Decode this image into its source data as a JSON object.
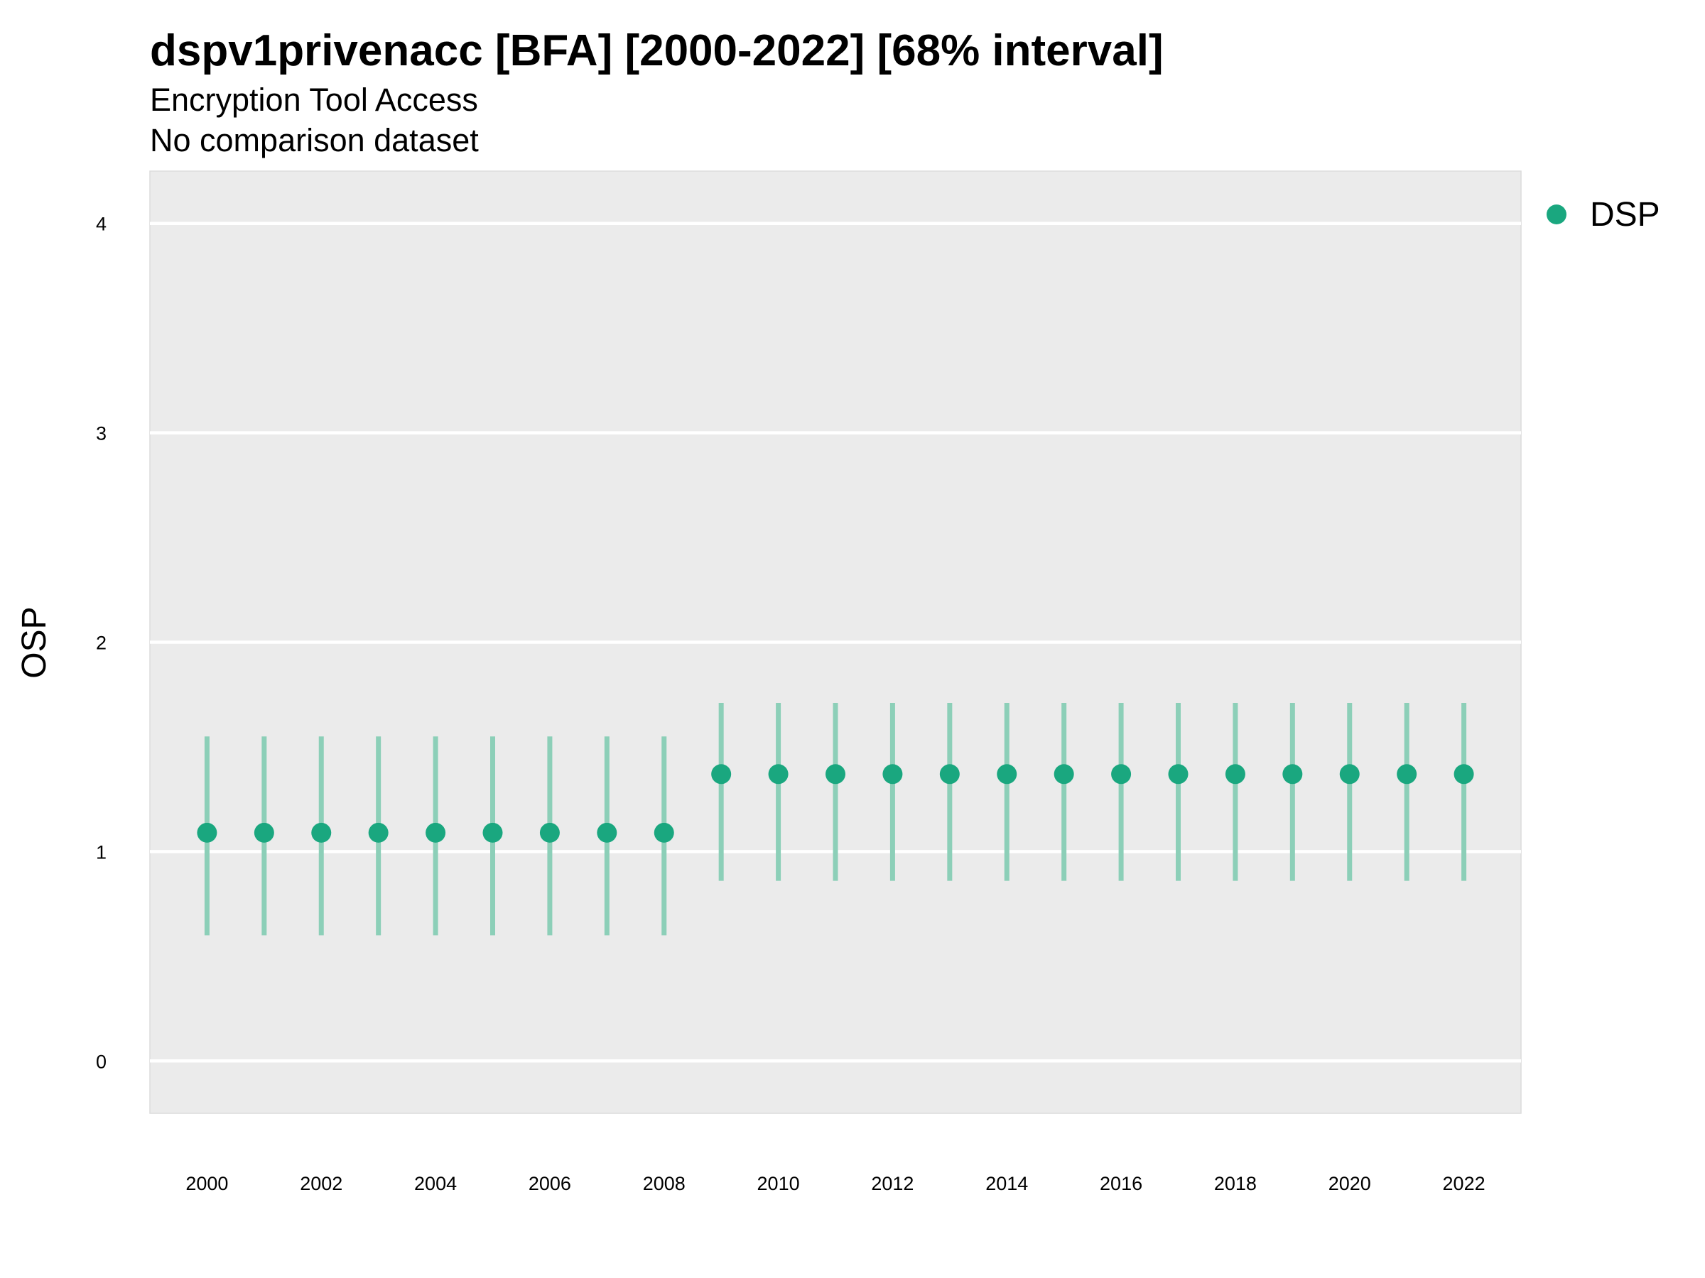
{
  "chart_data": {
    "type": "scatter",
    "title": "dspv1privenacc [BFA] [2000-2022] [68% interval]",
    "subtitle_lines": [
      "Encryption Tool Access",
      "No comparison dataset"
    ],
    "xlabel": "",
    "ylabel": "OSP",
    "xlim": [
      1999,
      2023
    ],
    "ylim": [
      -0.25,
      4.25
    ],
    "x_ticks": [
      2000,
      2002,
      2004,
      2006,
      2008,
      2010,
      2012,
      2014,
      2016,
      2018,
      2020,
      2022
    ],
    "y_ticks": [
      0,
      1,
      2,
      3,
      4
    ],
    "grid": true,
    "legend_position": "top-right",
    "series": [
      {
        "name": "DSP",
        "color": "#1aa77f",
        "interval_color": "#8ccfb8",
        "points": [
          {
            "x": 2000,
            "y": 1.09,
            "lo": 0.6,
            "hi": 1.55
          },
          {
            "x": 2001,
            "y": 1.09,
            "lo": 0.6,
            "hi": 1.55
          },
          {
            "x": 2002,
            "y": 1.09,
            "lo": 0.6,
            "hi": 1.55
          },
          {
            "x": 2003,
            "y": 1.09,
            "lo": 0.6,
            "hi": 1.55
          },
          {
            "x": 2004,
            "y": 1.09,
            "lo": 0.6,
            "hi": 1.55
          },
          {
            "x": 2005,
            "y": 1.09,
            "lo": 0.6,
            "hi": 1.55
          },
          {
            "x": 2006,
            "y": 1.09,
            "lo": 0.6,
            "hi": 1.55
          },
          {
            "x": 2007,
            "y": 1.09,
            "lo": 0.6,
            "hi": 1.55
          },
          {
            "x": 2008,
            "y": 1.09,
            "lo": 0.6,
            "hi": 1.55
          },
          {
            "x": 2009,
            "y": 1.37,
            "lo": 0.86,
            "hi": 1.71
          },
          {
            "x": 2010,
            "y": 1.37,
            "lo": 0.86,
            "hi": 1.71
          },
          {
            "x": 2011,
            "y": 1.37,
            "lo": 0.86,
            "hi": 1.71
          },
          {
            "x": 2012,
            "y": 1.37,
            "lo": 0.86,
            "hi": 1.71
          },
          {
            "x": 2013,
            "y": 1.37,
            "lo": 0.86,
            "hi": 1.71
          },
          {
            "x": 2014,
            "y": 1.37,
            "lo": 0.86,
            "hi": 1.71
          },
          {
            "x": 2015,
            "y": 1.37,
            "lo": 0.86,
            "hi": 1.71
          },
          {
            "x": 2016,
            "y": 1.37,
            "lo": 0.86,
            "hi": 1.71
          },
          {
            "x": 2017,
            "y": 1.37,
            "lo": 0.86,
            "hi": 1.71
          },
          {
            "x": 2018,
            "y": 1.37,
            "lo": 0.86,
            "hi": 1.71
          },
          {
            "x": 2019,
            "y": 1.37,
            "lo": 0.86,
            "hi": 1.71
          },
          {
            "x": 2020,
            "y": 1.37,
            "lo": 0.86,
            "hi": 1.71
          },
          {
            "x": 2021,
            "y": 1.37,
            "lo": 0.86,
            "hi": 1.71
          },
          {
            "x": 2022,
            "y": 1.37,
            "lo": 0.86,
            "hi": 1.71
          }
        ]
      }
    ]
  }
}
